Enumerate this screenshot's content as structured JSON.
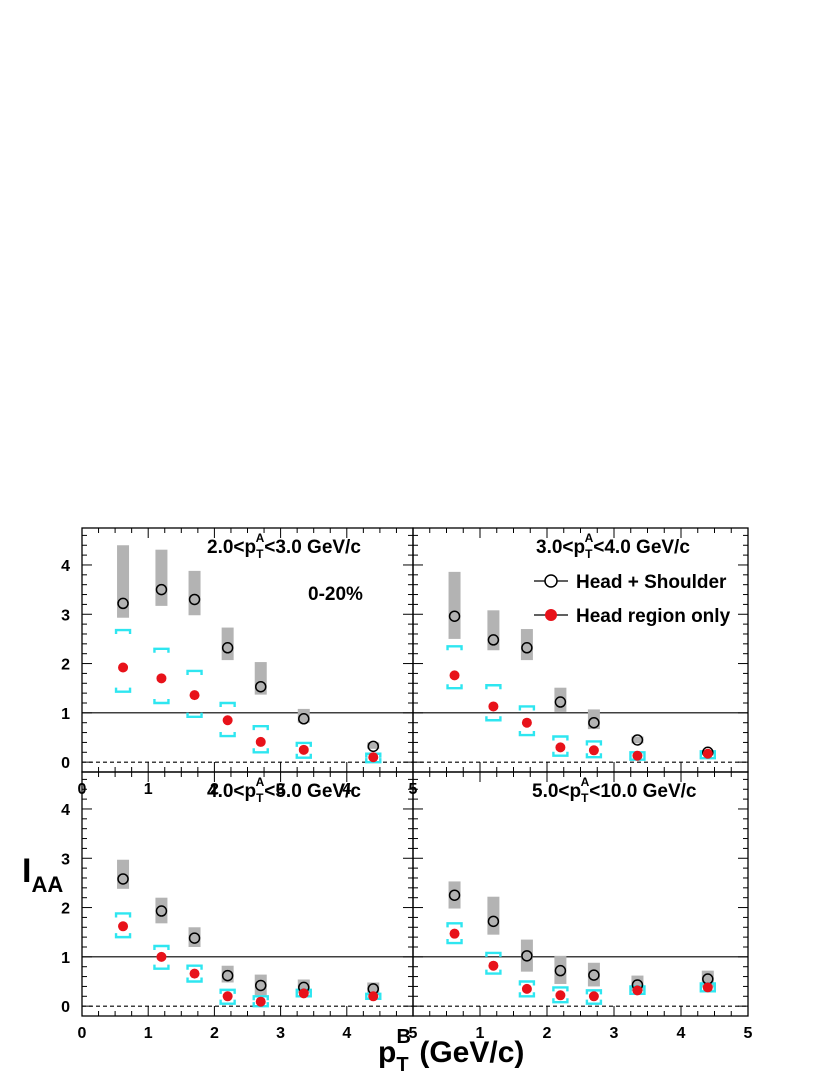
{
  "ylabel_main": "I",
  "ylabel_sub": "AA",
  "xlabel": {
    "p": "p",
    "sub": "T",
    "sup": "B",
    "units": " (GeV/c)"
  },
  "legend": {
    "head_shoulder": "Head + Shoulder",
    "head_only": "Head region only"
  },
  "centrality": "0-20%",
  "colors": {
    "hs_sys_box": "#b3b3b3",
    "hr_point": "#e8121a",
    "hr_sys_bracket": "#2ee6f0",
    "axis": "#000000"
  },
  "chart_data": [
    {
      "type": "scatter",
      "panel": "top-left",
      "label": {
        "pre": "2.0<p",
        "sub": "T",
        "sup": "A",
        "post": "<3.0 GeV/c"
      },
      "xlim": [
        0,
        5
      ],
      "ylim": [
        -0.2,
        4.75
      ],
      "x_ticks": [
        "0",
        "1",
        "2",
        "3",
        "4",
        "5"
      ],
      "y_ticks": [
        "0",
        "1",
        "2",
        "3",
        "4"
      ],
      "series": [
        {
          "name": "Head + Shoulder",
          "x": [
            0.62,
            1.2,
            1.7,
            2.2,
            2.7,
            3.35,
            4.4
          ],
          "y": [
            3.22,
            3.5,
            3.3,
            2.32,
            1.53,
            0.88,
            0.32
          ],
          "sys_low": [
            2.93,
            3.17,
            2.98,
            2.07,
            1.37,
            0.8,
            0.27
          ],
          "sys_high": [
            4.4,
            4.31,
            3.88,
            2.73,
            2.03,
            1.08,
            0.4
          ]
        },
        {
          "name": "Head region only",
          "x": [
            0.62,
            1.2,
            1.7,
            2.2,
            2.7,
            3.35,
            4.4
          ],
          "y": [
            1.92,
            1.7,
            1.36,
            0.85,
            0.41,
            0.25,
            0.1
          ],
          "sys_low": [
            1.43,
            1.2,
            0.92,
            0.53,
            0.2,
            0.09,
            0.0
          ],
          "sys_high": [
            2.68,
            2.3,
            1.85,
            1.2,
            0.73,
            0.39,
            0.17
          ]
        }
      ]
    },
    {
      "type": "scatter",
      "panel": "top-right",
      "label": {
        "pre": "3.0<p",
        "sub": "T",
        "sup": "A",
        "post": "<4.0 GeV/c"
      },
      "xlim": [
        0,
        5
      ],
      "ylim": [
        -0.2,
        4.75
      ],
      "x_ticks": [],
      "y_ticks": [],
      "series": [
        {
          "name": "Head + Shoulder",
          "x": [
            0.62,
            1.2,
            1.7,
            2.2,
            2.7,
            3.35,
            4.4
          ],
          "y": [
            2.96,
            2.48,
            2.32,
            1.22,
            0.8,
            0.45,
            0.2
          ],
          "sys_low": [
            2.5,
            2.27,
            2.07,
            1.02,
            0.67,
            0.38,
            0.15
          ],
          "sys_high": [
            3.86,
            3.08,
            2.7,
            1.51,
            1.07,
            0.52,
            0.24
          ]
        },
        {
          "name": "Head region only",
          "x": [
            0.62,
            1.2,
            1.7,
            2.2,
            2.7,
            3.35,
            4.4
          ],
          "y": [
            1.76,
            1.13,
            0.8,
            0.3,
            0.24,
            0.13,
            0.17
          ],
          "sys_low": [
            1.5,
            0.85,
            0.55,
            0.13,
            0.1,
            0.05,
            0.08
          ],
          "sys_high": [
            2.35,
            1.56,
            1.13,
            0.52,
            0.42,
            0.2,
            0.22
          ]
        }
      ]
    },
    {
      "type": "scatter",
      "panel": "bottom-left",
      "label": {
        "pre": "4.0<p",
        "sub": "T",
        "sup": "A",
        "post": "<5.0 GeV/c"
      },
      "xlim": [
        0,
        5
      ],
      "ylim": [
        -0.2,
        4.75
      ],
      "x_ticks": [
        "0",
        "1",
        "2",
        "3",
        "4",
        "5"
      ],
      "y_ticks": [
        "0",
        "1",
        "2",
        "3",
        "4"
      ],
      "series": [
        {
          "name": "Head + Shoulder",
          "x": [
            0.62,
            1.2,
            1.7,
            2.2,
            2.7,
            3.35,
            4.4
          ],
          "y": [
            2.58,
            1.93,
            1.38,
            0.62,
            0.42,
            0.38,
            0.35
          ],
          "sys_low": [
            2.38,
            1.68,
            1.2,
            0.48,
            0.22,
            0.27,
            0.22
          ],
          "sys_high": [
            2.97,
            2.2,
            1.6,
            0.82,
            0.64,
            0.54,
            0.48
          ]
        },
        {
          "name": "Head region only",
          "x": [
            0.62,
            1.2,
            1.7,
            2.2,
            2.7,
            3.35,
            4.4
          ],
          "y": [
            1.62,
            1.0,
            0.66,
            0.2,
            0.09,
            0.26,
            0.2
          ],
          "sys_low": [
            1.4,
            0.76,
            0.5,
            0.05,
            0.0,
            0.2,
            0.15
          ],
          "sys_high": [
            1.88,
            1.22,
            0.82,
            0.33,
            0.2,
            0.33,
            0.25
          ]
        }
      ]
    },
    {
      "type": "scatter",
      "panel": "bottom-right",
      "label": {
        "pre": "5.0<p",
        "sub": "T",
        "sup": "A",
        "post": "<10.0 GeV/c"
      },
      "xlim": [
        0,
        5
      ],
      "ylim": [
        -0.2,
        4.75
      ],
      "x_ticks": [
        "",
        "1",
        "2",
        "3",
        "4",
        "5"
      ],
      "y_ticks": [],
      "series": [
        {
          "name": "Head + Shoulder",
          "x": [
            0.62,
            1.2,
            1.7,
            2.2,
            2.7,
            3.35,
            4.4
          ],
          "y": [
            2.25,
            1.72,
            1.02,
            0.72,
            0.63,
            0.43,
            0.55
          ],
          "sys_low": [
            1.98,
            1.45,
            0.7,
            0.45,
            0.4,
            0.3,
            0.38
          ],
          "sys_high": [
            2.53,
            2.22,
            1.35,
            1.02,
            0.88,
            0.62,
            0.72
          ]
        },
        {
          "name": "Head region only",
          "x": [
            0.62,
            1.2,
            1.7,
            2.2,
            2.7,
            3.35,
            4.4
          ],
          "y": [
            1.47,
            0.82,
            0.35,
            0.22,
            0.2,
            0.32,
            0.38
          ],
          "sys_low": [
            1.28,
            0.66,
            0.2,
            0.08,
            0.05,
            0.25,
            0.3
          ],
          "sys_high": [
            1.68,
            1.08,
            0.5,
            0.38,
            0.32,
            0.4,
            0.46
          ]
        }
      ]
    }
  ]
}
